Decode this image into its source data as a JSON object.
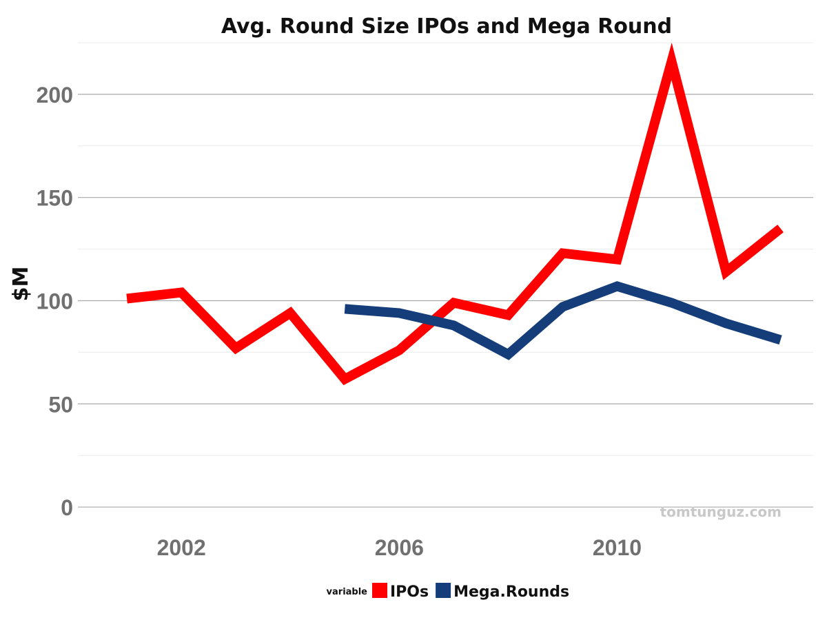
{
  "chart_data": {
    "type": "line",
    "title": "Avg. Round Size IPOs and Mega Round",
    "xlabel": "",
    "ylabel": "$M",
    "xlim": [
      2000.1,
      2013.6
    ],
    "ylim": [
      -9,
      225
    ],
    "x_ticks": [
      2002,
      2006,
      2010
    ],
    "y_ticks": [
      0,
      50,
      100,
      150,
      200
    ],
    "y_minor_ticks": [
      25,
      75,
      125,
      175,
      225
    ],
    "grid": true,
    "legend_title": "variable",
    "legend_position": "bottom",
    "series": [
      {
        "name": "IPOs",
        "color": "#ff0000",
        "x": [
          2001,
          2002,
          2003,
          2004,
          2005,
          2006,
          2007,
          2008,
          2009,
          2010,
          2011,
          2012,
          2013
        ],
        "y": [
          101,
          104,
          77,
          94,
          62,
          76,
          99,
          93,
          123,
          120,
          216,
          114,
          135
        ]
      },
      {
        "name": "Mega.Rounds",
        "color": "#153d7a",
        "x": [
          2005,
          2006,
          2007,
          2008,
          2009,
          2010,
          2011,
          2012,
          2013
        ],
        "y": [
          96,
          94,
          88,
          74,
          97,
          107,
          99,
          89,
          81
        ]
      }
    ],
    "watermark": "tomtunguz.com"
  }
}
